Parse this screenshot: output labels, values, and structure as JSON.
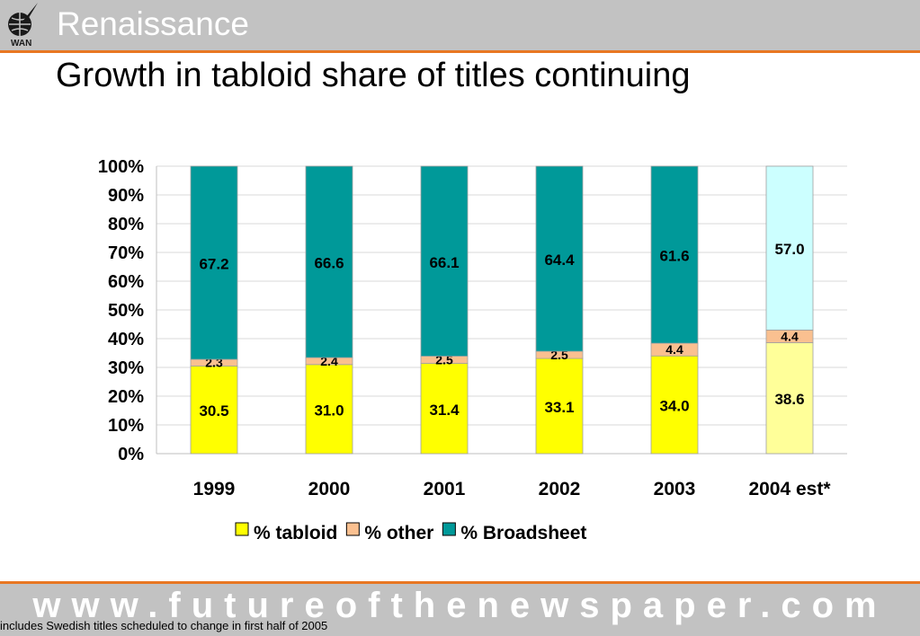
{
  "header": {
    "section_title": "Renaissance",
    "logo_text": "WAN",
    "slide_title": "Growth in tabloid share of titles continuing"
  },
  "chart_data": {
    "type": "bar",
    "stacked": true,
    "percent_stacked": true,
    "categories": [
      "1999",
      "2000",
      "2001",
      "2002",
      "2003",
      "2004 est*"
    ],
    "series": [
      {
        "name": "% tabloid",
        "values": [
          30.5,
          31.0,
          31.4,
          33.1,
          34.0,
          38.6
        ],
        "labels": [
          "30.5",
          "31.0",
          "31.4",
          "33.1",
          "34.0",
          "38.6"
        ],
        "color": "#ffff00",
        "highlight_color": "#ffff99"
      },
      {
        "name": "% other",
        "values": [
          2.3,
          2.4,
          2.5,
          2.5,
          4.4,
          4.4
        ],
        "labels": [
          "2.3",
          "2.4",
          "2.5",
          "2.5",
          "4.4",
          "4.4"
        ],
        "color": "#fac090",
        "highlight_color": "#fac090"
      },
      {
        "name": "% Broadsheet",
        "values": [
          67.2,
          66.6,
          66.1,
          64.4,
          61.6,
          57.0
        ],
        "labels": [
          "67.2",
          "66.6",
          "66.1",
          "64.4",
          "61.6",
          "57.0"
        ],
        "color": "#009999",
        "highlight_color": "#ccffff"
      }
    ],
    "highlight_category": "2004 est*",
    "y_ticks": [
      "0%",
      "10%",
      "20%",
      "30%",
      "40%",
      "50%",
      "60%",
      "70%",
      "80%",
      "90%",
      "100%"
    ],
    "ylim": [
      0,
      100
    ],
    "grid": true,
    "legend_position": "bottom"
  },
  "footer": {
    "url": "www.futureofthenewspaper.com",
    "footnote": "includes Swedish titles scheduled to change in first half of 2005"
  }
}
